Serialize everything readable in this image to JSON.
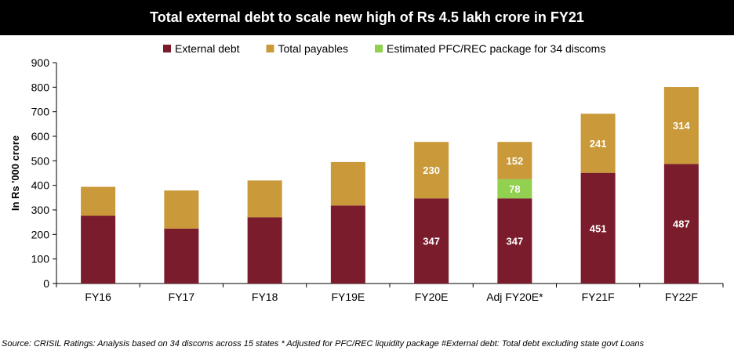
{
  "chart_data": {
    "type": "bar",
    "stacked": true,
    "title": "Total external debt to scale new high of Rs 4.5 lakh crore in FY21",
    "xlabel": "",
    "ylabel": "In Rs '000 crore",
    "ylim": [
      0,
      900
    ],
    "yticks": [
      0,
      100,
      200,
      300,
      400,
      500,
      600,
      700,
      800,
      900
    ],
    "categories": [
      "FY16",
      "FY17",
      "FY18",
      "FY19E",
      "FY20E",
      "Adj FY20E*",
      "FY21F",
      "FY22F"
    ],
    "series": [
      {
        "name": "External debt",
        "color": "#7B1C2C",
        "values": [
          276,
          224,
          270,
          318,
          347,
          347,
          451,
          487
        ],
        "labels": [
          "",
          "",
          "",
          "",
          "347",
          "347",
          "451",
          "487"
        ]
      },
      {
        "name": "Estimated PFC/REC package for 34 discoms",
        "color": "#92D050",
        "values": [
          0,
          0,
          0,
          0,
          0,
          78,
          0,
          0
        ],
        "labels": [
          "",
          "",
          "",
          "",
          "",
          "78",
          "",
          ""
        ]
      },
      {
        "name": "Total payables",
        "color": "#C9993A",
        "values": [
          118,
          155,
          150,
          177,
          230,
          152,
          241,
          314
        ],
        "labels": [
          "",
          "",
          "",
          "",
          "230",
          "152",
          "241",
          "314"
        ]
      }
    ],
    "legend_order": [
      "External debt",
      "Total payables",
      "Estimated PFC/REC package for 34 discoms"
    ],
    "legend_position": "top-center",
    "grid": false
  },
  "footer": {
    "source": "Source: CRISIL Ratings: Analysis based on 34 discoms across 15 states   * Adjusted for PFC/REC liquidity package   #External debt: Total debt excluding state govt Loans"
  }
}
